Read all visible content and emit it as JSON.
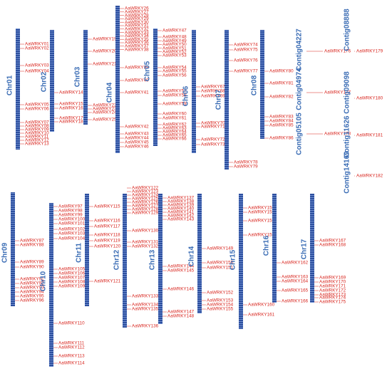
{
  "chromosomes": [
    {
      "name": "Chr01",
      "genes": [
        "AaWRKY01",
        "AaWRKY02",
        "AaWRKY03",
        "AaWRKY04",
        "AaWRKY05",
        "AaWRKY06",
        "AaWRKY07",
        "AaWRKY08",
        "AaWRKY09",
        "AaWRKY10",
        "AaWRKY11",
        "AaWRKY12",
        "AaWRKY13"
      ]
    },
    {
      "name": "Chr02",
      "genes": [
        "AaWRKY14",
        "AaWRKY15",
        "AaWRKY16",
        "AaWRKY17",
        "AaWRKY18"
      ]
    },
    {
      "name": "Chr03",
      "genes": [
        "AaWRKY19",
        "AaWRKY20",
        "AaWRKY21",
        "AaWRKY22",
        "AaWRKY23",
        "AaWRKY24",
        "AaWRKY25"
      ]
    },
    {
      "name": "Chr04",
      "genes": [
        "AaWRKY26",
        "AaWRKY27",
        "AaWRKY28",
        "AaWRKY29",
        "AaWRKY30",
        "AaWRKY31",
        "AaWRKY32",
        "AaWRKY33",
        "AaWRKY34",
        "AaWRKY35",
        "AaWRKY36",
        "AaWRKY37",
        "AaWRKY38",
        "AaWRKY39",
        "AaWRKY40",
        "AaWRKY41",
        "AaWRKY42",
        "AaWRKY43",
        "AaWRKY44",
        "AaWRKY45",
        "AaWRKY46"
      ]
    },
    {
      "name": "Chr05",
      "genes": [
        "AaWRKY47",
        "AaWRKY48",
        "AaWRKY49",
        "AaWRKY50",
        "AaWRKY51",
        "AaWRKY52",
        "AaWRKY53",
        "AaWRKY54",
        "AaWRKY55",
        "AaWRKY56",
        "AaWRKY57",
        "AaWRKY58",
        "AaWRKY59",
        "AaWRKY60",
        "AaWRKY61",
        "AaWRKY62",
        "AaWRKY63",
        "AaWRKY64",
        "AaWRKY65",
        "AaWRKY66"
      ]
    },
    {
      "name": "Chr06",
      "genes": [
        "AaWRKY67",
        "AaWRKY68",
        "AaWRKY69",
        "AaWRKY70",
        "AaWRKY71",
        "AaWRKY72",
        "AaWRKY73"
      ]
    },
    {
      "name": "Chr07",
      "genes": [
        "AaWRKY74",
        "AaWRKY75",
        "AaWRKY76",
        "AaWRKY77",
        "AaWRKY78",
        "AaWRKY79"
      ]
    },
    {
      "name": "Chr08",
      "genes": [
        "AaWRKY80",
        "AaWRKY81",
        "AaWRKY82",
        "AaWRKY83",
        "AaWRKY84",
        "AaWRKY85",
        "AaWRKY86"
      ]
    },
    {
      "name": "Chr09",
      "genes": [
        "AaWRKY87",
        "AaWRKY88",
        "AaWRKY89",
        "AaWRKY90",
        "AaWRKY91",
        "AaWRKY92",
        "AaWRKY93",
        "AaWRKY94",
        "AaWRKY95",
        "AaWRKY96"
      ]
    },
    {
      "name": "Chr10",
      "genes": [
        "AaWRKY97",
        "AaWRKY98",
        "AaWRKY99",
        "AaWRKY100",
        "AaWRKY101",
        "AaWRKY102",
        "AaWRKY103",
        "AaWRKY104",
        "AaWRKY105",
        "AaWRKY106",
        "AaWRKY107",
        "AaWRKY108",
        "AaWRKY109",
        "AaWRKY110",
        "AaWRKY111",
        "AaWRKY112",
        "AaWRKY113",
        "AaWRKY114"
      ]
    },
    {
      "name": "Chr11",
      "genes": [
        "AaWRKY115",
        "AaWRKY116",
        "AaWRKY117",
        "AaWRKY118",
        "AaWRKY119",
        "AaWRKY120",
        "AaWRKY121"
      ]
    },
    {
      "name": "Chr12",
      "genes": [
        "AaWRKY122",
        "AaWRKY123",
        "AaWRKY124",
        "AaWRKY125",
        "AaWRKY126",
        "AaWRKY127",
        "AaWRKY128",
        "AaWRKY129",
        "AaWRKY130",
        "AaWRKY131",
        "AaWRKY132",
        "AaWRKY133",
        "AaWRKY134",
        "AaWRKY135",
        "AaWRKY136"
      ]
    },
    {
      "name": "Chr13",
      "genes": [
        "AaWRKY137",
        "AaWRKY138",
        "AaWRKY139",
        "AaWRKY140",
        "AaWRKY141",
        "AaWRKY142",
        "AaWRKY143",
        "AaWRKY144",
        "AaWRKY145",
        "AaWRKY146",
        "AaWRKY147",
        "AaWRKY148"
      ]
    },
    {
      "name": "Chr14",
      "genes": [
        "AaWRKY149",
        "AaWRKY150",
        "AaWRKY151",
        "AaWRKY152",
        "AaWRKY153",
        "AaWRKY154",
        "AaWRKY155"
      ]
    },
    {
      "name": "Chr15",
      "genes": [
        "AaWRKY156",
        "AaWRKY157",
        "AaWRKY158",
        "AaWRKY159",
        "AaWRKY160",
        "AaWRKY161"
      ]
    },
    {
      "name": "Chr16",
      "genes": [
        "AaWRKY162",
        "AaWRKY163",
        "AaWRKY164",
        "AaWRKY165",
        "AaWRKY166"
      ]
    },
    {
      "name": "Chr17",
      "genes": [
        "AaWRKY167",
        "AaWRKY168",
        "AaWRKY169",
        "AaWRKY170",
        "AaWRKY171",
        "AaWRKY172",
        "AaWRKY173",
        "AaWRKY174",
        "AaWRKY175"
      ]
    }
  ],
  "contigs": [
    {
      "name": "Contig04227",
      "genes": [
        "AaWRKY176"
      ]
    },
    {
      "name": "Contig04974",
      "genes": [
        "AaWRKY177"
      ]
    },
    {
      "name": "Contig05105",
      "genes": [
        "AaWRKY178"
      ]
    },
    {
      "name": "Contig08888",
      "genes": [
        "AaWRKY179"
      ]
    },
    {
      "name": "Contig09098",
      "genes": [
        "AaWRKY180"
      ]
    },
    {
      "name": "Contig11626",
      "genes": [
        "AaWRKY181"
      ]
    },
    {
      "name": "Contig14169",
      "genes": [
        "AaWRKY182"
      ]
    }
  ]
}
